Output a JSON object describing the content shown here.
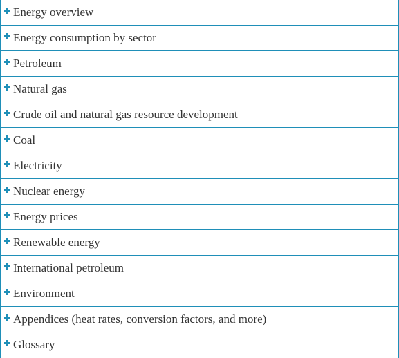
{
  "accordion": {
    "accent_color": "#1f8fb8",
    "items": [
      {
        "label": "Energy overview",
        "icon": "plus-icon"
      },
      {
        "label": "Energy consumption by sector",
        "icon": "plus-icon"
      },
      {
        "label": "Petroleum",
        "icon": "plus-icon"
      },
      {
        "label": "Natural gas",
        "icon": "plus-icon"
      },
      {
        "label": "Crude oil and natural gas resource development",
        "icon": "plus-icon"
      },
      {
        "label": "Coal",
        "icon": "plus-icon"
      },
      {
        "label": "Electricity",
        "icon": "plus-icon"
      },
      {
        "label": "Nuclear energy",
        "icon": "plus-icon"
      },
      {
        "label": "Energy prices",
        "icon": "plus-icon"
      },
      {
        "label": "Renewable energy",
        "icon": "plus-icon"
      },
      {
        "label": "International petroleum",
        "icon": "plus-icon"
      },
      {
        "label": "Environment",
        "icon": "plus-icon"
      },
      {
        "label": "Appendices (heat rates, conversion factors, and more)",
        "icon": "plus-icon"
      },
      {
        "label": "Glossary",
        "icon": "plus-icon"
      }
    ]
  }
}
